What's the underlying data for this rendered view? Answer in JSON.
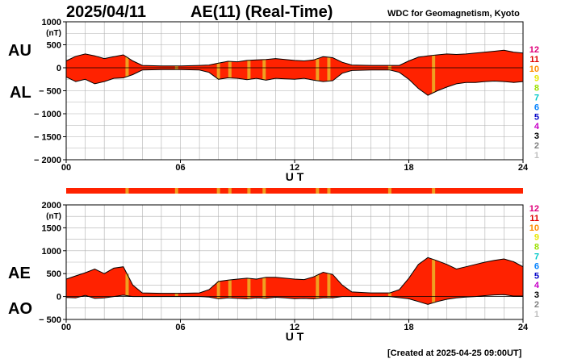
{
  "header": {
    "date": "2025/04/11",
    "title": "AE(11) (Real-Time)",
    "source": "WDC for Geomagnetism, Kyoto",
    "created": "[Created at 2025-04-25 09:00UT]"
  },
  "legend_levels": [
    {
      "label": "12",
      "color": "#e0007a"
    },
    {
      "label": "11",
      "color": "#e00000"
    },
    {
      "label": "10",
      "color": "#ff8c00"
    },
    {
      "label": "9",
      "color": "#e8e800"
    },
    {
      "label": "8",
      "color": "#9be000"
    },
    {
      "label": "7",
      "color": "#00c8c8"
    },
    {
      "label": "6",
      "color": "#0080ff"
    },
    {
      "label": "5",
      "color": "#0000c8"
    },
    {
      "label": "4",
      "color": "#c800c8"
    },
    {
      "label": "3",
      "color": "#000000"
    },
    {
      "label": "2",
      "color": "#808080"
    },
    {
      "label": "1",
      "color": "#c0c0c0"
    }
  ],
  "colors": {
    "fill": "#ff2200",
    "stripe": "#f0a020",
    "outline": "#000000",
    "grid": "#b0b0b0"
  },
  "stripe_hours": [
    3.2,
    5.8,
    8.0,
    8.6,
    9.6,
    10.4,
    13.2,
    13.8,
    17.0,
    19.3
  ],
  "chart_data": [
    {
      "type": "area",
      "name": "AU/AL",
      "labels": [
        "AU",
        "AL"
      ],
      "unit": "(nT)",
      "xlabel": "U T",
      "x_ticks": [
        "00",
        "06",
        "12",
        "18",
        "24"
      ],
      "xlim": [
        0,
        24
      ],
      "ylim": [
        -2000,
        1000
      ],
      "y_ticks": [
        1000,
        500,
        0,
        -500,
        -1000,
        -1500,
        -2000
      ],
      "x": [
        0,
        0.5,
        1,
        1.5,
        2,
        2.5,
        3,
        3.5,
        4,
        5,
        6,
        7,
        7.5,
        8,
        8.5,
        9,
        9.5,
        10,
        10.5,
        11,
        11.5,
        12,
        12.5,
        13,
        13.5,
        14,
        14.5,
        15,
        16,
        17,
        17.5,
        18,
        18.5,
        19,
        19.5,
        20,
        20.5,
        21,
        21.5,
        22,
        22.5,
        23,
        23.5,
        24
      ],
      "series": [
        {
          "name": "AU",
          "values": [
            150,
            250,
            300,
            260,
            200,
            240,
            280,
            150,
            50,
            40,
            40,
            50,
            60,
            100,
            140,
            130,
            160,
            170,
            180,
            200,
            180,
            160,
            150,
            170,
            240,
            220,
            120,
            60,
            50,
            50,
            50,
            150,
            230,
            260,
            280,
            300,
            290,
            300,
            320,
            340,
            360,
            380,
            340,
            320
          ]
        },
        {
          "name": "AL",
          "values": [
            -200,
            -300,
            -250,
            -350,
            -300,
            -230,
            -220,
            -150,
            -50,
            -40,
            -40,
            -50,
            -100,
            -250,
            -220,
            -230,
            -260,
            -230,
            -270,
            -230,
            -240,
            -250,
            -230,
            -270,
            -300,
            -280,
            -120,
            -60,
            -50,
            -50,
            -100,
            -250,
            -450,
            -600,
            -500,
            -420,
            -350,
            -320,
            -320,
            -300,
            -290,
            -300,
            -320,
            -300
          ]
        }
      ]
    },
    {
      "type": "area",
      "name": "AE/AO",
      "labels": [
        "AE",
        "AO"
      ],
      "unit": "(nT)",
      "xlabel": "U T",
      "x_ticks": [
        "00",
        "06",
        "12",
        "18",
        "24"
      ],
      "xlim": [
        0,
        24
      ],
      "ylim": [
        -500,
        2000
      ],
      "y_ticks": [
        2000,
        1500,
        1000,
        500,
        0,
        -500
      ],
      "x": [
        0,
        0.5,
        1,
        1.5,
        2,
        2.5,
        3,
        3.5,
        4,
        5,
        6,
        7,
        7.5,
        8,
        8.5,
        9,
        9.5,
        10,
        10.5,
        11,
        11.5,
        12,
        12.5,
        13,
        13.5,
        14,
        14.5,
        15,
        16,
        17,
        17.5,
        18,
        18.5,
        19,
        19.5,
        20,
        20.5,
        21,
        21.5,
        22,
        22.5,
        23,
        23.5,
        24
      ],
      "series": [
        {
          "name": "AE",
          "values": [
            380,
            450,
            520,
            600,
            500,
            620,
            650,
            250,
            80,
            70,
            70,
            80,
            150,
            330,
            360,
            380,
            400,
            380,
            420,
            420,
            400,
            380,
            370,
            430,
            530,
            480,
            250,
            100,
            80,
            80,
            150,
            400,
            700,
            850,
            780,
            700,
            600,
            650,
            700,
            750,
            790,
            820,
            760,
            650
          ]
        },
        {
          "name": "AO",
          "values": [
            -20,
            -30,
            25,
            -40,
            -30,
            0,
            30,
            0,
            0,
            0,
            0,
            0,
            -10,
            -50,
            -30,
            -40,
            -50,
            -30,
            -40,
            -15,
            -30,
            -45,
            -40,
            -50,
            -30,
            -30,
            0,
            0,
            0,
            0,
            -25,
            -50,
            -110,
            -170,
            -110,
            -60,
            -30,
            -10,
            0,
            20,
            35,
            40,
            10,
            10
          ]
        }
      ]
    }
  ]
}
